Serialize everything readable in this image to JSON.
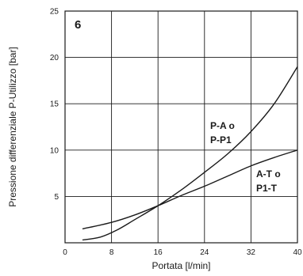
{
  "chart_data": {
    "type": "line",
    "panel_label": "6",
    "xlabel": "Portata [l/min]",
    "ylabel": "Pressione differenziale P-Utilizzo [bar]",
    "xlim": [
      0,
      40
    ],
    "ylim": [
      0,
      25
    ],
    "x_ticks": [
      0,
      8,
      16,
      24,
      32,
      40
    ],
    "y_ticks": [
      5,
      10,
      15,
      20,
      25
    ],
    "grid": true,
    "legend": "none",
    "series": [
      {
        "label_lines": [
          "P-A o",
          "P-P1"
        ],
        "x": [
          3,
          6,
          9,
          12,
          16,
          20,
          24,
          28,
          32,
          36,
          40
        ],
        "y": [
          0.3,
          0.6,
          1.4,
          2.5,
          4.0,
          5.7,
          7.6,
          9.6,
          12.0,
          15.0,
          19.0
        ]
      },
      {
        "label_lines": [
          "A-T o",
          "P1-T"
        ],
        "x": [
          3,
          8,
          12,
          16,
          20,
          24,
          28,
          32,
          36,
          40
        ],
        "y": [
          1.5,
          2.2,
          3.0,
          4.0,
          5.1,
          6.1,
          7.2,
          8.3,
          9.2,
          10.0
        ]
      }
    ]
  }
}
